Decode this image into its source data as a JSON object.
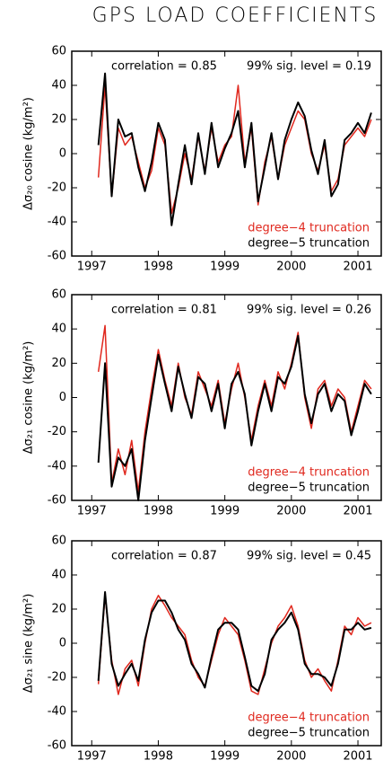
{
  "title": "GPS LOAD COEFFICIENTS",
  "chart_data": [
    {
      "type": "line",
      "ylabel": "Δσ₂₀ cosine (kg/m²)",
      "annotations": [
        "correlation = 0.85",
        "99% sig. level = 0.19"
      ],
      "x": [
        1997.1,
        1997.2,
        1997.3,
        1997.4,
        1997.5,
        1997.6,
        1997.7,
        1997.8,
        1997.9,
        1998.0,
        1998.1,
        1998.2,
        1998.3,
        1998.4,
        1998.5,
        1998.6,
        1998.7,
        1998.8,
        1998.9,
        1999.0,
        1999.1,
        1999.2,
        1999.3,
        1999.4,
        1999.5,
        1999.6,
        1999.7,
        1999.8,
        1999.9,
        2000.0,
        2000.1,
        2000.2,
        2000.3,
        2000.4,
        2000.5,
        2000.6,
        2000.7,
        2000.8,
        2000.9,
        2001.0,
        2001.1,
        2001.2
      ],
      "series": [
        {
          "name": "degree−4 truncation",
          "color": "#e0281e",
          "values": [
            -14,
            40,
            -25,
            15,
            5,
            10,
            -5,
            -20,
            -10,
            15,
            5,
            -35,
            -20,
            0,
            -15,
            10,
            -10,
            15,
            -5,
            5,
            10,
            40,
            -5,
            15,
            -30,
            -5,
            10,
            -15,
            5,
            15,
            25,
            20,
            0,
            -10,
            5,
            -22,
            -15,
            5,
            10,
            15,
            10,
            20
          ]
        },
        {
          "name": "degree−5 truncation",
          "color": "#000000",
          "values": [
            5,
            47,
            -25,
            20,
            10,
            12,
            -8,
            -22,
            -5,
            18,
            8,
            -42,
            -18,
            5,
            -18,
            12,
            -12,
            18,
            -8,
            3,
            12,
            25,
            -8,
            18,
            -28,
            -8,
            12,
            -15,
            8,
            20,
            30,
            22,
            2,
            -12,
            8,
            -25,
            -18,
            8,
            12,
            18,
            12,
            24
          ]
        }
      ],
      "xlim": [
        1996.7,
        2001.35
      ],
      "ylim": [
        -60,
        60
      ],
      "xticks": [
        1997,
        1998,
        1999,
        2000,
        2001
      ],
      "yticks": [
        -60,
        -40,
        -20,
        0,
        20,
        40,
        60
      ],
      "legend": "lower right"
    },
    {
      "type": "line",
      "ylabel": "Δσ₂₁ cosine (kg/m²)",
      "annotations": [
        "correlation = 0.81",
        "99% sig. level = 0.26"
      ],
      "x": [
        1997.1,
        1997.2,
        1997.3,
        1997.4,
        1997.5,
        1997.6,
        1997.7,
        1997.8,
        1997.9,
        1998.0,
        1998.1,
        1998.2,
        1998.3,
        1998.4,
        1998.5,
        1998.6,
        1998.7,
        1998.8,
        1998.9,
        1999.0,
        1999.1,
        1999.2,
        1999.3,
        1999.4,
        1999.5,
        1999.6,
        1999.7,
        1999.8,
        1999.9,
        2000.0,
        2000.1,
        2000.2,
        2000.3,
        2000.4,
        2000.5,
        2000.6,
        2000.7,
        2000.8,
        2000.9,
        2001.0,
        2001.1,
        2001.2
      ],
      "series": [
        {
          "name": "degree−4 truncation",
          "color": "#e0281e",
          "values": [
            15,
            42,
            -50,
            -30,
            -45,
            -25,
            -55,
            -20,
            5,
            28,
            10,
            -5,
            20,
            0,
            -10,
            15,
            5,
            -5,
            10,
            -15,
            5,
            20,
            0,
            -25,
            -5,
            10,
            -5,
            15,
            5,
            20,
            38,
            0,
            -18,
            5,
            10,
            -5,
            5,
            0,
            -20,
            -5,
            10,
            5
          ]
        },
        {
          "name": "degree−5 truncation",
          "color": "#000000",
          "values": [
            -38,
            20,
            -52,
            -35,
            -40,
            -30,
            -60,
            -25,
            0,
            25,
            8,
            -8,
            18,
            2,
            -12,
            12,
            8,
            -8,
            8,
            -18,
            8,
            15,
            2,
            -28,
            -8,
            8,
            -8,
            12,
            8,
            18,
            36,
            2,
            -15,
            2,
            8,
            -8,
            2,
            -2,
            -22,
            -8,
            8,
            2
          ]
        }
      ],
      "xlim": [
        1996.7,
        2001.35
      ],
      "ylim": [
        -60,
        60
      ],
      "xticks": [
        1997,
        1998,
        1999,
        2000,
        2001
      ],
      "yticks": [
        -60,
        -40,
        -20,
        0,
        20,
        40,
        60
      ],
      "legend": "lower right"
    },
    {
      "type": "line",
      "ylabel": "Δσ₂₁ sine (kg/m²)",
      "annotations": [
        "correlation = 0.87",
        "99% sig. level = 0.45"
      ],
      "x": [
        1997.1,
        1997.2,
        1997.3,
        1997.4,
        1997.5,
        1997.6,
        1997.7,
        1997.8,
        1997.9,
        1998.0,
        1998.1,
        1998.2,
        1998.3,
        1998.4,
        1998.5,
        1998.6,
        1998.7,
        1998.8,
        1998.9,
        1999.0,
        1999.1,
        1999.2,
        1999.3,
        1999.4,
        1999.5,
        1999.6,
        1999.7,
        1999.8,
        1999.9,
        2000.0,
        2000.1,
        2000.2,
        2000.3,
        2000.4,
        2000.5,
        2000.6,
        2000.7,
        2000.8,
        2000.9,
        2001.0,
        2001.1,
        2001.2
      ],
      "series": [
        {
          "name": "degree−4 truncation",
          "color": "#e0281e",
          "values": [
            -24,
            28,
            -10,
            -30,
            -15,
            -10,
            -25,
            0,
            20,
            28,
            22,
            15,
            10,
            5,
            -10,
            -20,
            -25,
            -10,
            5,
            15,
            10,
            5,
            -10,
            -28,
            -30,
            -15,
            0,
            10,
            15,
            22,
            10,
            -10,
            -20,
            -15,
            -22,
            -28,
            -10,
            10,
            5,
            15,
            10,
            12
          ]
        },
        {
          "name": "degree−5 truncation",
          "color": "#000000",
          "values": [
            -22,
            30,
            -12,
            -25,
            -18,
            -12,
            -22,
            2,
            18,
            25,
            25,
            18,
            8,
            2,
            -12,
            -18,
            -26,
            -8,
            8,
            12,
            12,
            8,
            -8,
            -25,
            -28,
            -18,
            2,
            8,
            12,
            18,
            8,
            -12,
            -18,
            -18,
            -20,
            -25,
            -12,
            8,
            8,
            12,
            8,
            9
          ]
        }
      ],
      "xlim": [
        1996.7,
        2001.35
      ],
      "ylim": [
        -60,
        60
      ],
      "xticks": [
        1997,
        1998,
        1999,
        2000,
        2001
      ],
      "yticks": [
        -60,
        -40,
        -20,
        0,
        20,
        40,
        60
      ],
      "legend": "lower right"
    }
  ]
}
